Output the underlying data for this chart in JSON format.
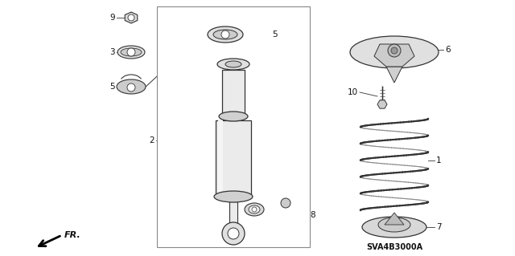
{
  "bg_color": "#ffffff",
  "line_color": "#333333",
  "catalog_number": "SVA4B3000A",
  "figsize": [
    6.4,
    3.19
  ],
  "dpi": 100
}
